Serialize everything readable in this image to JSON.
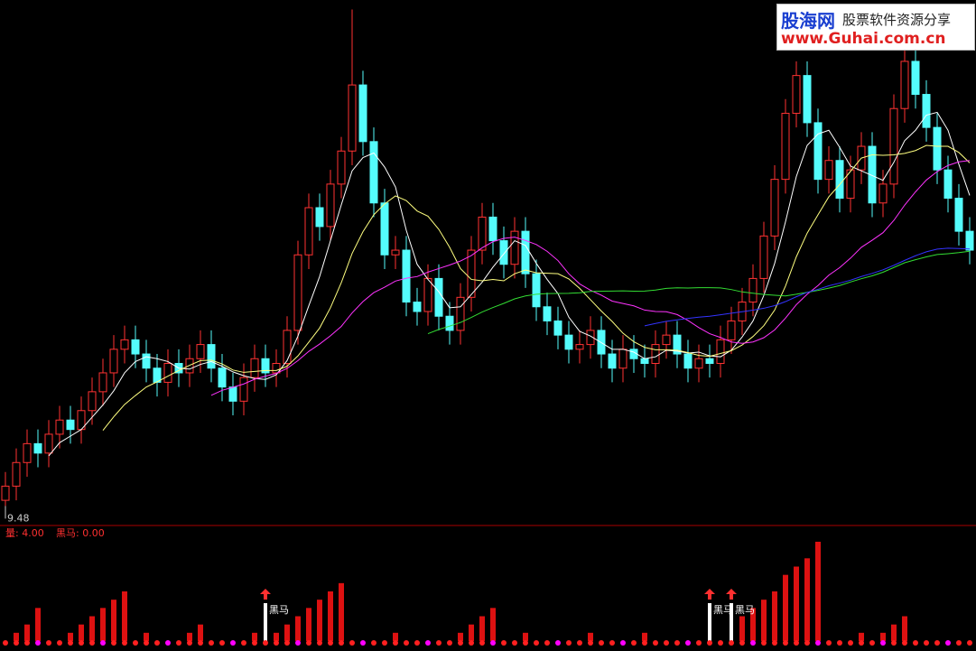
{
  "chart_data": {
    "type": "candlestick",
    "open": [
      9.6,
      9.9,
      10.4,
      10.8,
      10.6,
      11.0,
      11.3,
      11.1,
      11.5,
      11.9,
      12.3,
      12.8,
      13.0,
      12.7,
      12.4,
      12.1,
      12.5,
      12.3,
      12.6,
      12.9,
      12.4,
      12.0,
      11.7,
      12.2,
      12.6,
      12.3,
      12.5,
      13.2,
      14.8,
      15.8,
      15.4,
      16.3,
      17.0,
      18.4,
      17.2,
      15.9,
      14.8,
      14.9,
      13.8,
      13.6,
      14.3,
      13.5,
      13.2,
      13.9,
      14.9,
      15.6,
      15.1,
      14.6,
      15.3,
      14.4,
      13.7,
      13.4,
      13.1,
      12.8,
      12.9,
      13.2,
      12.7,
      12.4,
      12.8,
      12.6,
      12.5,
      12.9,
      13.1,
      12.7,
      12.4,
      12.6,
      12.5,
      13.0,
      13.4,
      13.8,
      14.3,
      15.2,
      16.4,
      17.8,
      18.6,
      17.6,
      16.4,
      16.8,
      16.0,
      16.6,
      17.1,
      15.9,
      16.3,
      17.9,
      18.9,
      18.2,
      17.5,
      16.6,
      16.0,
      15.3
    ],
    "high": [
      10.2,
      10.7,
      11.1,
      11.1,
      11.3,
      11.6,
      11.6,
      11.8,
      12.2,
      12.6,
      13.1,
      13.3,
      13.3,
      13.0,
      12.7,
      12.8,
      12.8,
      12.9,
      13.2,
      13.2,
      12.7,
      12.3,
      12.5,
      12.9,
      12.9,
      12.8,
      13.5,
      15.1,
      16.1,
      16.1,
      16.6,
      17.3,
      20.0,
      18.7,
      17.5,
      16.2,
      15.2,
      15.2,
      14.1,
      14.6,
      14.6,
      13.8,
      14.2,
      15.2,
      15.9,
      15.9,
      15.4,
      15.6,
      15.6,
      14.7,
      14.0,
      13.7,
      13.4,
      13.2,
      13.5,
      13.5,
      13.0,
      13.1,
      13.1,
      12.9,
      13.2,
      13.4,
      13.4,
      13.0,
      12.9,
      12.9,
      13.3,
      13.7,
      14.1,
      14.6,
      15.5,
      16.7,
      18.1,
      18.9,
      18.9,
      17.9,
      17.1,
      17.1,
      16.9,
      17.4,
      17.4,
      16.6,
      18.2,
      19.2,
      19.2,
      18.5,
      17.8,
      16.9,
      16.3,
      15.6
    ],
    "low": [
      9.48,
      9.6,
      10.1,
      10.3,
      10.3,
      10.7,
      10.8,
      10.8,
      11.2,
      11.6,
      12.0,
      12.5,
      12.4,
      12.1,
      11.8,
      11.8,
      12.0,
      12.0,
      12.3,
      12.1,
      11.7,
      11.4,
      11.4,
      11.9,
      12.0,
      12.0,
      12.2,
      12.9,
      14.5,
      15.1,
      15.1,
      16.0,
      16.7,
      16.9,
      15.6,
      14.5,
      14.5,
      13.5,
      13.3,
      13.3,
      13.2,
      12.9,
      12.9,
      13.6,
      14.6,
      14.8,
      14.3,
      14.3,
      14.1,
      13.4,
      13.1,
      12.8,
      12.5,
      12.5,
      12.6,
      12.4,
      12.1,
      12.1,
      12.3,
      12.2,
      12.2,
      12.6,
      12.4,
      12.1,
      12.1,
      12.2,
      12.2,
      12.7,
      13.1,
      13.5,
      14.0,
      14.9,
      16.1,
      17.5,
      17.3,
      16.1,
      16.1,
      15.7,
      15.7,
      16.3,
      15.6,
      15.6,
      16.0,
      17.6,
      17.9,
      17.2,
      16.3,
      15.7,
      15.0,
      14.6
    ],
    "close": [
      9.9,
      10.4,
      10.8,
      10.6,
      11.0,
      11.3,
      11.1,
      11.5,
      11.9,
      12.3,
      12.8,
      13.0,
      12.7,
      12.4,
      12.1,
      12.5,
      12.3,
      12.6,
      12.9,
      12.4,
      12.0,
      11.7,
      12.2,
      12.6,
      12.3,
      12.5,
      13.2,
      14.8,
      15.8,
      15.4,
      16.3,
      17.0,
      18.4,
      17.2,
      15.9,
      14.8,
      14.9,
      13.8,
      13.6,
      14.3,
      13.5,
      13.2,
      13.9,
      14.9,
      15.6,
      15.1,
      14.6,
      15.3,
      14.4,
      13.7,
      13.4,
      13.1,
      12.8,
      12.9,
      13.2,
      12.7,
      12.4,
      12.8,
      12.6,
      12.5,
      12.9,
      13.1,
      12.7,
      12.4,
      12.6,
      12.5,
      13.0,
      13.4,
      13.8,
      14.3,
      15.2,
      16.4,
      17.8,
      18.6,
      17.6,
      16.4,
      16.8,
      16.0,
      16.6,
      17.1,
      15.9,
      16.3,
      17.9,
      18.9,
      18.2,
      17.5,
      16.6,
      16.0,
      15.3,
      14.9
    ],
    "ylim": [
      9.2,
      20.2
    ],
    "up_color": "#ff3232",
    "down_color": "#54fcfc",
    "moving_averages": [
      {
        "period": 5,
        "color": "#ffffff"
      },
      {
        "period": 10,
        "color": "#ffff80"
      },
      {
        "period": 20,
        "color": "#ff33ff"
      },
      {
        "period": 40,
        "color": "#33dd33"
      },
      {
        "period": 60,
        "color": "#3333ff"
      }
    ],
    "indicator": {
      "legend": [
        "量: 4.00",
        "黑马: 0.00"
      ],
      "values": [
        0,
        1,
        2,
        4,
        0,
        0,
        1,
        2,
        3,
        4,
        5,
        6,
        0,
        1,
        0,
        0,
        0,
        1,
        2,
        0,
        0,
        0,
        0,
        1,
        0,
        1,
        2,
        3,
        4,
        5,
        6,
        7,
        0,
        0,
        0,
        0,
        1,
        0,
        0,
        0,
        0,
        0,
        1,
        2,
        3,
        4,
        0,
        0,
        1,
        0,
        0,
        0,
        0,
        0,
        1,
        0,
        0,
        0,
        0,
        1,
        0,
        0,
        0,
        0,
        0,
        0,
        0,
        0,
        3,
        4,
        5,
        6,
        8,
        9,
        10,
        12,
        0,
        0,
        0,
        1,
        0,
        1,
        2,
        3,
        0,
        0,
        0,
        0,
        0,
        0
      ],
      "ylim": [
        0,
        12
      ],
      "color": "#dd1111",
      "signals": [
        {
          "index": 24,
          "label": "黑马"
        },
        {
          "index": 65,
          "label": "黑马"
        },
        {
          "index": 67,
          "label": "黑马"
        }
      ]
    }
  },
  "watermark": {
    "site": "股海网",
    "slogan": "股票软件资源分享",
    "url": "www.Guhai.com.cn"
  }
}
